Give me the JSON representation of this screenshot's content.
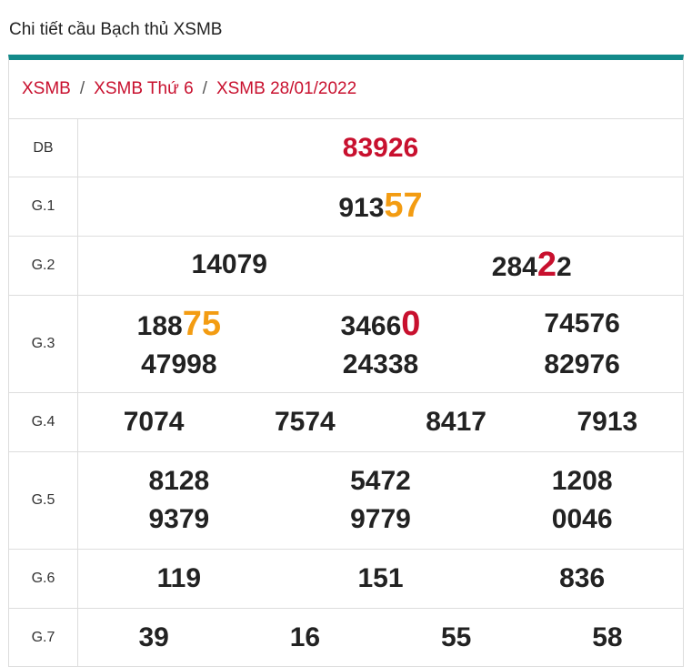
{
  "header": {
    "title": "Chi tiết cầu Bạch thủ XSMB"
  },
  "breadcrumb": {
    "items": [
      "XSMB",
      "XSMB Thứ 6",
      "XSMB 28/01/2022"
    ],
    "separator": "/"
  },
  "prizes": {
    "rows": [
      {
        "label": "DB",
        "numbers": [
          {
            "parts": [
              {
                "text": "83926",
                "color": "#c8102e"
              }
            ]
          }
        ]
      },
      {
        "label": "G.1",
        "numbers": [
          {
            "parts": [
              {
                "text": "913"
              },
              {
                "text": "57",
                "color": "#f39c12",
                "big": true
              }
            ]
          }
        ]
      },
      {
        "label": "G.2",
        "numbers": [
          {
            "parts": [
              {
                "text": "14079"
              }
            ]
          },
          {
            "parts": [
              {
                "text": "284"
              },
              {
                "text": "2",
                "color": "#c8102e",
                "big": true
              },
              {
                "text": "2"
              }
            ]
          }
        ]
      },
      {
        "label": "G.3",
        "numbers": [
          {
            "parts": [
              {
                "text": "188"
              },
              {
                "text": "75",
                "color": "#f39c12",
                "big": true
              }
            ]
          },
          {
            "parts": [
              {
                "text": "3466"
              },
              {
                "text": "0",
                "color": "#c8102e",
                "big": true
              }
            ]
          },
          {
            "parts": [
              {
                "text": "74576"
              }
            ]
          },
          {
            "parts": [
              {
                "text": "47998"
              }
            ]
          },
          {
            "parts": [
              {
                "text": "24338"
              }
            ]
          },
          {
            "parts": [
              {
                "text": "82976"
              }
            ]
          }
        ]
      },
      {
        "label": "G.4",
        "numbers": [
          {
            "parts": [
              {
                "text": "7074"
              }
            ]
          },
          {
            "parts": [
              {
                "text": "7574"
              }
            ]
          },
          {
            "parts": [
              {
                "text": "8417"
              }
            ]
          },
          {
            "parts": [
              {
                "text": "7913"
              }
            ]
          }
        ]
      },
      {
        "label": "G.5",
        "numbers": [
          {
            "parts": [
              {
                "text": "8128"
              }
            ]
          },
          {
            "parts": [
              {
                "text": "5472"
              }
            ]
          },
          {
            "parts": [
              {
                "text": "1208"
              }
            ]
          },
          {
            "parts": [
              {
                "text": "9379"
              }
            ]
          },
          {
            "parts": [
              {
                "text": "9779"
              }
            ]
          },
          {
            "parts": [
              {
                "text": "0046"
              }
            ]
          }
        ]
      },
      {
        "label": "G.6",
        "numbers": [
          {
            "parts": [
              {
                "text": "119"
              }
            ]
          },
          {
            "parts": [
              {
                "text": "151"
              }
            ]
          },
          {
            "parts": [
              {
                "text": "836"
              }
            ]
          }
        ]
      },
      {
        "label": "G.7",
        "numbers": [
          {
            "parts": [
              {
                "text": "39"
              }
            ]
          },
          {
            "parts": [
              {
                "text": "16"
              }
            ]
          },
          {
            "parts": [
              {
                "text": "55"
              }
            ]
          },
          {
            "parts": [
              {
                "text": "58"
              }
            ]
          }
        ]
      }
    ]
  }
}
